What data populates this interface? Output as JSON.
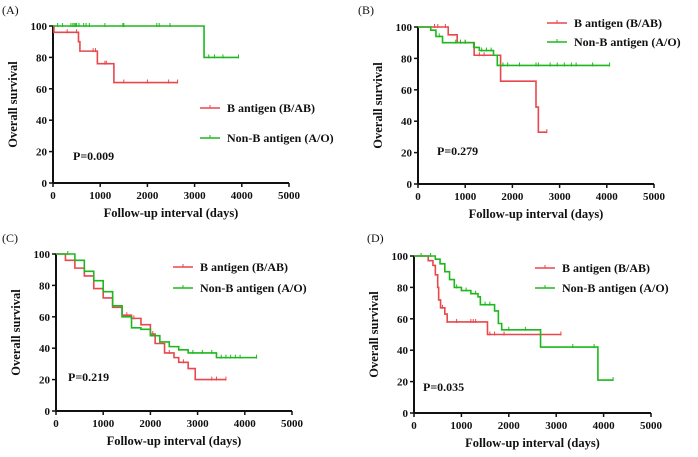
{
  "colors": {
    "b_antigen": "#e8474c",
    "non_b_antigen": "#1db81d"
  },
  "chart_data": [
    {
      "type": "line",
      "panel_label": "(A)",
      "xlabel": "Follow-up interval (days)",
      "ylabel": "Overall survival",
      "xlim": [
        0,
        5000
      ],
      "ylim": [
        0,
        100
      ],
      "xticks": [
        "0",
        "1000",
        "2000",
        "3000",
        "4000",
        "5000"
      ],
      "yticks": [
        "0",
        "20",
        "40",
        "60",
        "80",
        "100"
      ],
      "legend_placement": "right",
      "annotation": "P=0.009",
      "series": [
        {
          "name": "B antigen (B/AB)",
          "step": [
            [
              0,
              100
            ],
            [
              20,
              96
            ],
            [
              540,
              90
            ],
            [
              570,
              84
            ],
            [
              940,
              76
            ],
            [
              1290,
              64
            ],
            [
              2640,
              64
            ]
          ],
          "censored": [
            300,
            500,
            850,
            900,
            1100,
            1130,
            1500,
            2000,
            2450,
            2640
          ]
        },
        {
          "name": "Non-B antigen (A/O)",
          "step": [
            [
              0,
              100
            ],
            [
              3200,
              80
            ],
            [
              3930,
              80
            ]
          ],
          "censored": [
            100,
            200,
            380,
            420,
            450,
            480,
            500,
            550,
            650,
            700,
            770,
            1100,
            1480,
            1500,
            2200,
            2250,
            2480,
            3300,
            3420,
            3600,
            3930
          ]
        }
      ]
    },
    {
      "type": "line",
      "panel_label": "(B)",
      "xlabel": "Follow-up interval (days)",
      "ylabel": "Overall survival",
      "xlim": [
        0,
        5000
      ],
      "ylim": [
        0,
        100
      ],
      "xticks": [
        "0",
        "1000",
        "2000",
        "3000",
        "4000",
        "5000"
      ],
      "yticks": [
        "0",
        "20",
        "40",
        "60",
        "80",
        "100"
      ],
      "legend_placement": "top-right",
      "annotation": "P=0.279",
      "series": [
        {
          "name": "B antigen (B/AB)",
          "step": [
            [
              0,
              100
            ],
            [
              640,
              95
            ],
            [
              830,
              90
            ],
            [
              1190,
              82
            ],
            [
              1750,
              65.5
            ],
            [
              2500,
              49
            ],
            [
              2550,
              33
            ],
            [
              2730,
              33
            ]
          ],
          "censored": [
            350,
            420,
            580,
            900,
            1000,
            1300,
            1400,
            2730
          ]
        },
        {
          "name": "Non-B antigen (A/O)",
          "step": [
            [
              0,
              100
            ],
            [
              270,
              98
            ],
            [
              380,
              94
            ],
            [
              520,
              90
            ],
            [
              1180,
              87
            ],
            [
              1300,
              85
            ],
            [
              1600,
              82
            ],
            [
              1680,
              75.5
            ],
            [
              4060,
              75.5
            ]
          ],
          "censored": [
            450,
            800,
            900,
            1000,
            1350,
            1450,
            1550,
            1800,
            1900,
            2150,
            2500,
            2550,
            2800,
            2950,
            3100,
            3250,
            3350,
            3700,
            4060
          ]
        }
      ]
    },
    {
      "type": "line",
      "panel_label": "(C)",
      "xlabel": "Follow-up interval (days)",
      "ylabel": "Overall survival",
      "xlim": [
        0,
        5000
      ],
      "ylim": [
        0,
        100
      ],
      "xticks": [
        "0",
        "1000",
        "2000",
        "3000",
        "4000",
        "5000"
      ],
      "yticks": [
        "0",
        "20",
        "40",
        "60",
        "80",
        "100"
      ],
      "legend_placement": "top-right",
      "annotation": "P=0.219",
      "series": [
        {
          "name": "B antigen (B/AB)",
          "step": [
            [
              0,
              100
            ],
            [
              200,
              96
            ],
            [
              400,
              91
            ],
            [
              600,
              86
            ],
            [
              800,
              78
            ],
            [
              1000,
              72
            ],
            [
              1200,
              66
            ],
            [
              1400,
              61
            ],
            [
              1600,
              59
            ],
            [
              1800,
              55
            ],
            [
              2000,
              49
            ],
            [
              2100,
              43
            ],
            [
              2300,
              37
            ],
            [
              2500,
              34
            ],
            [
              2600,
              31
            ],
            [
              2800,
              27
            ],
            [
              2950,
              20
            ],
            [
              3600,
              20
            ]
          ],
          "censored": [
            1500,
            1650,
            1800,
            2050,
            2400,
            2700,
            3300,
            3400,
            3600
          ]
        },
        {
          "name": "Non-B antigen (A/O)",
          "step": [
            [
              0,
              100
            ],
            [
              400,
              96
            ],
            [
              600,
              89
            ],
            [
              800,
              83
            ],
            [
              1000,
              76
            ],
            [
              1200,
              67
            ],
            [
              1400,
              60
            ],
            [
              1600,
              53
            ],
            [
              1800,
              52
            ],
            [
              2000,
              48
            ],
            [
              2200,
              44
            ],
            [
              2400,
              41
            ],
            [
              2600,
              39
            ],
            [
              2800,
              37
            ],
            [
              3400,
              34
            ],
            [
              4250,
              34
            ]
          ],
          "censored": [
            250,
            2200,
            2600,
            2900,
            3100,
            3300,
            3500,
            3600,
            3700,
            3800,
            3900,
            4250
          ]
        }
      ]
    },
    {
      "type": "line",
      "panel_label": "(D)",
      "xlabel": "Follow-up interval (days)",
      "ylabel": "Overall survival",
      "xlim": [
        0,
        5000
      ],
      "ylim": [
        0,
        100
      ],
      "xticks": [
        "0",
        "1000",
        "2000",
        "3000",
        "4000",
        "5000"
      ],
      "yticks": [
        "0",
        "20",
        "40",
        "60",
        "80",
        "100"
      ],
      "legend_placement": "top-right",
      "annotation": "P=0.035",
      "series": [
        {
          "name": "B antigen (B/AB)",
          "step": [
            [
              0,
              100
            ],
            [
              300,
              97
            ],
            [
              400,
              94
            ],
            [
              450,
              88
            ],
            [
              500,
              80
            ],
            [
              520,
              72
            ],
            [
              560,
              67
            ],
            [
              650,
              63
            ],
            [
              700,
              58
            ],
            [
              1550,
              50
            ],
            [
              3100,
              50
            ]
          ],
          "censored": [
            600,
            700,
            900,
            1200,
            1250,
            1300,
            1600,
            1700,
            1900,
            3100
          ]
        },
        {
          "name": "Non-B antigen (A/O)",
          "step": [
            [
              0,
              100
            ],
            [
              450,
              98
            ],
            [
              550,
              95
            ],
            [
              650,
              90
            ],
            [
              750,
              85
            ],
            [
              850,
              80
            ],
            [
              1000,
              78
            ],
            [
              1200,
              76
            ],
            [
              1350,
              74
            ],
            [
              1400,
              69
            ],
            [
              1700,
              65
            ],
            [
              1780,
              57
            ],
            [
              1850,
              53
            ],
            [
              2670,
              42
            ],
            [
              3880,
              21
            ],
            [
              4200,
              21
            ]
          ],
          "censored": [
            150,
            350,
            900,
            1100,
            1300,
            1500,
            1600,
            2000,
            2350,
            3350,
            3800,
            4200
          ]
        }
      ]
    }
  ]
}
